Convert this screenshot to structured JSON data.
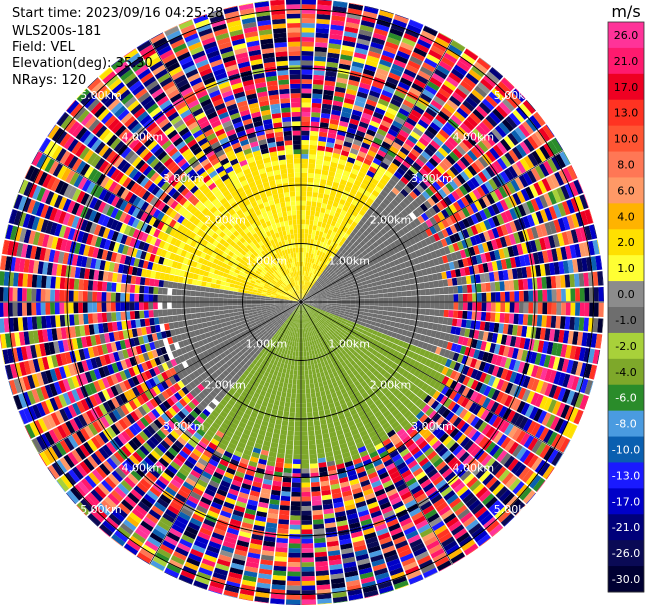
{
  "info": {
    "start_time": "Start time: 2023/09/16 04:25:28",
    "instrument": "WLS200s-181",
    "field": "Field: VEL",
    "elevation": "Elevation(deg): 35.30",
    "nrays": "NRays: 120"
  },
  "chart_data": {
    "type": "heatmap",
    "projection": "polar PPI",
    "field": "VEL",
    "units": "m/s",
    "n_rays": 120,
    "elevation_deg": 35.3,
    "range_rings_km": [
      1,
      2,
      3,
      4,
      5
    ],
    "ring_label_text": [
      "1.00km",
      "2.00km",
      "3.00km",
      "4.00km",
      "5.00km"
    ],
    "colorbar": {
      "title": "m/s",
      "ticks": [
        "26.0",
        "21.0",
        "17.0",
        "13.0",
        "10.0",
        "8.0",
        "6.0",
        "4.0",
        "2.0",
        "1.0",
        "0.0",
        "-1.0",
        "-2.0",
        "-4.0",
        "-6.0",
        "-8.0",
        "-10.0",
        "-13.0",
        "-17.0",
        "-21.0",
        "-26.0",
        "-30.0"
      ],
      "colors": [
        "#ff3399",
        "#ff1a6e",
        "#ee0022",
        "#ff3322",
        "#ff5533",
        "#ff7755",
        "#ff9966",
        "#ffb300",
        "#ffe000",
        "#ffff33",
        "#8c8c8c",
        "#6e6e6e",
        "#a8d13a",
        "#7ea82a",
        "#2a8c2a",
        "#4a9be0",
        "#0a5fb0",
        "#1a1aff",
        "#0000c8",
        "#00007a",
        "#0a0a55",
        "#000033"
      ]
    },
    "regions": [
      {
        "sector_deg": [
          -80,
          35
        ],
        "max_range_km": 2.6,
        "velocity_ms": [
          1.0,
          4.0
        ],
        "description": "yellow (positive) sector"
      },
      {
        "sector_deg": [
          35,
          110
        ],
        "max_range_km": 2.6,
        "velocity_ms": [
          -1.0,
          0.0
        ],
        "description": "gray near-zero sector"
      },
      {
        "sector_deg": [
          110,
          220
        ],
        "max_range_km": 2.8,
        "velocity_ms": [
          -4.0,
          -2.0
        ],
        "description": "green (negative) sector"
      },
      {
        "sector_deg": [
          220,
          280
        ],
        "max_range_km": 2.4,
        "velocity_ms": [
          -1.0,
          0.0
        ],
        "description": "gray near-zero sector"
      }
    ],
    "noise_beyond_km": 2.6
  }
}
